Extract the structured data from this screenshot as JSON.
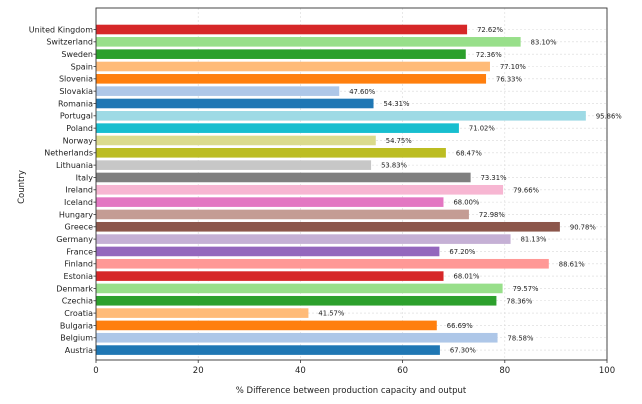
{
  "chart_data": {
    "type": "bar",
    "orientation": "horizontal",
    "title": "",
    "xlabel": "% Difference between production capacity and output",
    "ylabel": "Country",
    "xlim": [
      0,
      100
    ],
    "xticks": [
      "0",
      "20",
      "40",
      "60",
      "80",
      "100"
    ],
    "grid": true,
    "legend": "none",
    "categories": [
      "United Kingdom",
      "Switzerland",
      "Sweden",
      "Spain",
      "Slovenia",
      "Slovakia",
      "Romania",
      "Portugal",
      "Poland",
      "Norway",
      "Netherlands",
      "Lithuania",
      "Italy",
      "Ireland",
      "Iceland",
      "Hungary",
      "Greece",
      "Germany",
      "France",
      "Finland",
      "Estonia",
      "Denmark",
      "Czechia",
      "Croatia",
      "Bulgaria",
      "Belgium",
      "Austria"
    ],
    "values": [
      72.62,
      83.1,
      72.36,
      77.1,
      76.33,
      47.6,
      54.31,
      95.86,
      71.02,
      54.75,
      68.47,
      53.83,
      73.31,
      79.66,
      68.0,
      72.98,
      90.78,
      81.13,
      67.2,
      88.61,
      68.01,
      79.57,
      78.36,
      41.57,
      66.69,
      78.58,
      67.3
    ],
    "data_labels": [
      "72.62%",
      "83.10%",
      "72.36%",
      "77.10%",
      "76.33%",
      "47.60%",
      "54.31%",
      "95.86%",
      "71.02%",
      "54.75%",
      "68.47%",
      "53.83%",
      "73.31%",
      "79.66%",
      "68.00%",
      "72.98%",
      "90.78%",
      "81.13%",
      "67.20%",
      "88.61%",
      "68.01%",
      "79.57%",
      "78.36%",
      "41.57%",
      "66.69%",
      "78.58%",
      "67.30%"
    ],
    "colors": [
      "#d62728",
      "#98df8a",
      "#2ca02c",
      "#ffbb78",
      "#ff7f0e",
      "#aec7e8",
      "#1f77b4",
      "#9edae5",
      "#17becf",
      "#dbdb8d",
      "#bcbd22",
      "#c7c7c7",
      "#7f7f7f",
      "#f7b6d2",
      "#e377c2",
      "#c49c94",
      "#8c564b",
      "#c5b0d5",
      "#9467bd",
      "#ff9896",
      "#d62728",
      "#98df8a",
      "#2ca02c",
      "#ffbb78",
      "#ff7f0e",
      "#aec7e8",
      "#1f77b4"
    ]
  }
}
